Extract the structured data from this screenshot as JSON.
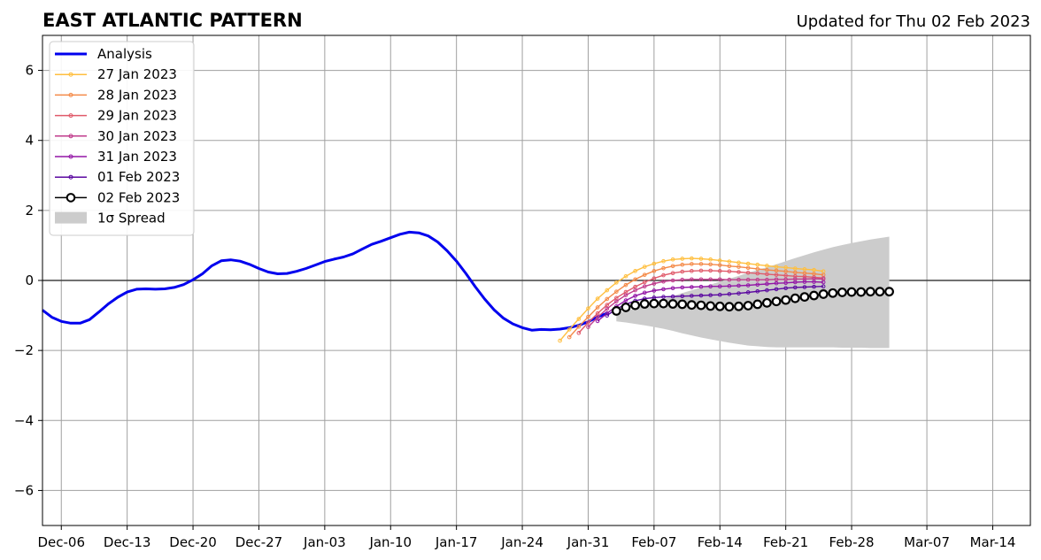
{
  "chart_data": {
    "type": "line",
    "title": "EAST ATLANTIC PATTERN",
    "subtitle": "Updated for Thu 02 Feb 2023",
    "xlabel": "",
    "ylabel": "",
    "xlim": [
      "2023-12-04",
      "2024-03-18"
    ],
    "ylim": [
      -7,
      7
    ],
    "x_ticks": [
      "Dec-06",
      "Dec-13",
      "Dec-20",
      "Dec-27",
      "Jan-03",
      "Jan-10",
      "Jan-17",
      "Jan-24",
      "Jan-31",
      "Feb-07",
      "Feb-14",
      "Feb-21",
      "Feb-28",
      "Mar-07",
      "Mar-14"
    ],
    "x_tick_dates": [
      "2023-12-06",
      "2023-12-13",
      "2023-12-20",
      "2023-12-27",
      "2024-01-03",
      "2024-01-10",
      "2024-01-17",
      "2024-01-24",
      "2024-01-31",
      "2024-02-07",
      "2024-02-14",
      "2024-02-21",
      "2024-02-28",
      "2024-03-07",
      "2024-03-14"
    ],
    "y_ticks": [
      6,
      4,
      2,
      0,
      -2,
      -4,
      -6
    ],
    "y_tick_labels": [
      "6",
      "4",
      "2",
      "0",
      "−2",
      "−4",
      "−6"
    ],
    "grid": true,
    "legend_position": "upper-left",
    "legend": [
      "Analysis",
      "27 Jan 2023",
      "28 Jan 2023",
      "29 Jan 2023",
      "30 Jan 2023",
      "31 Jan 2023",
      "01 Feb 2023",
      "02 Feb 2023",
      "1σ Spread"
    ],
    "analysis": {
      "name": "Analysis",
      "color": "#0000ee",
      "start": "2023-12-04",
      "values": [
        -0.85,
        -1.05,
        -1.17,
        -1.22,
        -1.22,
        -1.12,
        -0.9,
        -0.67,
        -0.48,
        -0.33,
        -0.25,
        -0.24,
        -0.25,
        -0.24,
        -0.2,
        -0.12,
        0.02,
        0.19,
        0.42,
        0.56,
        0.59,
        0.55,
        0.46,
        0.34,
        0.24,
        0.19,
        0.2,
        0.26,
        0.34,
        0.44,
        0.54,
        0.61,
        0.67,
        0.76,
        0.9,
        1.03,
        1.12,
        1.22,
        1.32,
        1.38,
        1.36,
        1.27,
        1.1,
        0.85,
        0.55,
        0.2,
        -0.18,
        -0.53,
        -0.84,
        -1.08,
        -1.24,
        -1.35,
        -1.42,
        -1.4,
        -1.41,
        -1.39,
        -1.35,
        -1.28,
        -1.18,
        -1.04,
        -0.94
      ]
    },
    "forecasts": [
      {
        "name": "27 Jan 2023",
        "color": "#ffbf3f",
        "start": "2024-01-28",
        "values": [
          -1.72,
          -1.4,
          -1.1,
          -0.8,
          -0.52,
          -0.28,
          -0.06,
          0.12,
          0.27,
          0.39,
          0.48,
          0.55,
          0.6,
          0.62,
          0.63,
          0.62,
          0.6,
          0.57,
          0.54,
          0.51,
          0.48,
          0.45,
          0.42,
          0.39,
          0.37,
          0.34,
          0.32,
          0.3,
          0.26
        ]
      },
      {
        "name": "28 Jan 2023",
        "color": "#f48a48",
        "start": "2024-01-29",
        "values": [
          -1.62,
          -1.32,
          -1.04,
          -0.77,
          -0.53,
          -0.32,
          -0.13,
          0.03,
          0.16,
          0.27,
          0.35,
          0.41,
          0.45,
          0.47,
          0.47,
          0.46,
          0.44,
          0.41,
          0.39,
          0.36,
          0.33,
          0.3,
          0.28,
          0.26,
          0.23,
          0.21,
          0.19,
          0.16
        ]
      },
      {
        "name": "29 Jan 2023",
        "color": "#e05a6a",
        "start": "2024-01-30",
        "values": [
          -1.5,
          -1.2,
          -0.94,
          -0.7,
          -0.5,
          -0.33,
          -0.18,
          -0.05,
          0.06,
          0.15,
          0.21,
          0.25,
          0.27,
          0.28,
          0.28,
          0.27,
          0.26,
          0.24,
          0.22,
          0.2,
          0.18,
          0.16,
          0.14,
          0.12,
          0.11,
          0.09,
          0.07
        ]
      },
      {
        "name": "30 Jan 2023",
        "color": "#c03c8c",
        "start": "2024-01-31",
        "values": [
          -1.33,
          -1.05,
          -0.81,
          -0.6,
          -0.42,
          -0.28,
          -0.17,
          -0.09,
          -0.03,
          0.0,
          0.02,
          0.03,
          0.03,
          0.03,
          0.03,
          0.02,
          0.02,
          0.02,
          0.02,
          0.02,
          0.03,
          0.03,
          0.04,
          0.04,
          0.05,
          0.04
        ]
      },
      {
        "name": "31 Jan 2023",
        "color": "#9316a6",
        "start": "2024-02-01",
        "values": [
          -1.16,
          -0.94,
          -0.74,
          -0.57,
          -0.44,
          -0.35,
          -0.29,
          -0.25,
          -0.22,
          -0.2,
          -0.19,
          -0.18,
          -0.17,
          -0.17,
          -0.16,
          -0.15,
          -0.14,
          -0.12,
          -0.1,
          -0.08,
          -0.07,
          -0.05,
          -0.04,
          -0.04,
          -0.05
        ]
      },
      {
        "name": "01 Feb 2023",
        "color": "#5b08a0",
        "start": "2024-02-02",
        "values": [
          -1.0,
          -0.82,
          -0.68,
          -0.58,
          -0.52,
          -0.49,
          -0.47,
          -0.46,
          -0.45,
          -0.44,
          -0.43,
          -0.42,
          -0.41,
          -0.39,
          -0.37,
          -0.34,
          -0.31,
          -0.28,
          -0.25,
          -0.22,
          -0.2,
          -0.19,
          -0.18,
          -0.17
        ]
      }
    ],
    "latest": {
      "name": "02 Feb 2023",
      "color": "#000000",
      "start": "2024-02-03",
      "values": [
        -0.87,
        -0.77,
        -0.71,
        -0.67,
        -0.66,
        -0.66,
        -0.67,
        -0.68,
        -0.7,
        -0.71,
        -0.73,
        -0.74,
        -0.75,
        -0.74,
        -0.72,
        -0.68,
        -0.64,
        -0.6,
        -0.56,
        -0.51,
        -0.47,
        -0.43,
        -0.39,
        -0.36,
        -0.34,
        -0.33,
        -0.33,
        -0.32,
        -0.32,
        -0.32
      ]
    },
    "spread": {
      "name": "1σ Spread",
      "color": "#cccccc",
      "start": "2024-02-03",
      "upper": [
        -0.95,
        -0.88,
        -0.8,
        -0.7,
        -0.62,
        -0.53,
        -0.45,
        -0.36,
        -0.28,
        -0.2,
        -0.12,
        -0.03,
        0.05,
        0.13,
        0.22,
        0.3,
        0.38,
        0.46,
        0.55,
        0.64,
        0.72,
        0.8,
        0.88,
        0.95,
        1.01,
        1.07,
        1.12,
        1.17,
        1.21,
        1.25
      ],
      "lower": [
        -1.17,
        -1.2,
        -1.24,
        -1.28,
        -1.33,
        -1.38,
        -1.44,
        -1.51,
        -1.57,
        -1.63,
        -1.68,
        -1.73,
        -1.78,
        -1.82,
        -1.86,
        -1.88,
        -1.9,
        -1.91,
        -1.91,
        -1.91,
        -1.91,
        -1.91,
        -1.91,
        -1.91,
        -1.92,
        -1.92,
        -1.92,
        -1.93,
        -1.93,
        -1.93
      ]
    }
  }
}
